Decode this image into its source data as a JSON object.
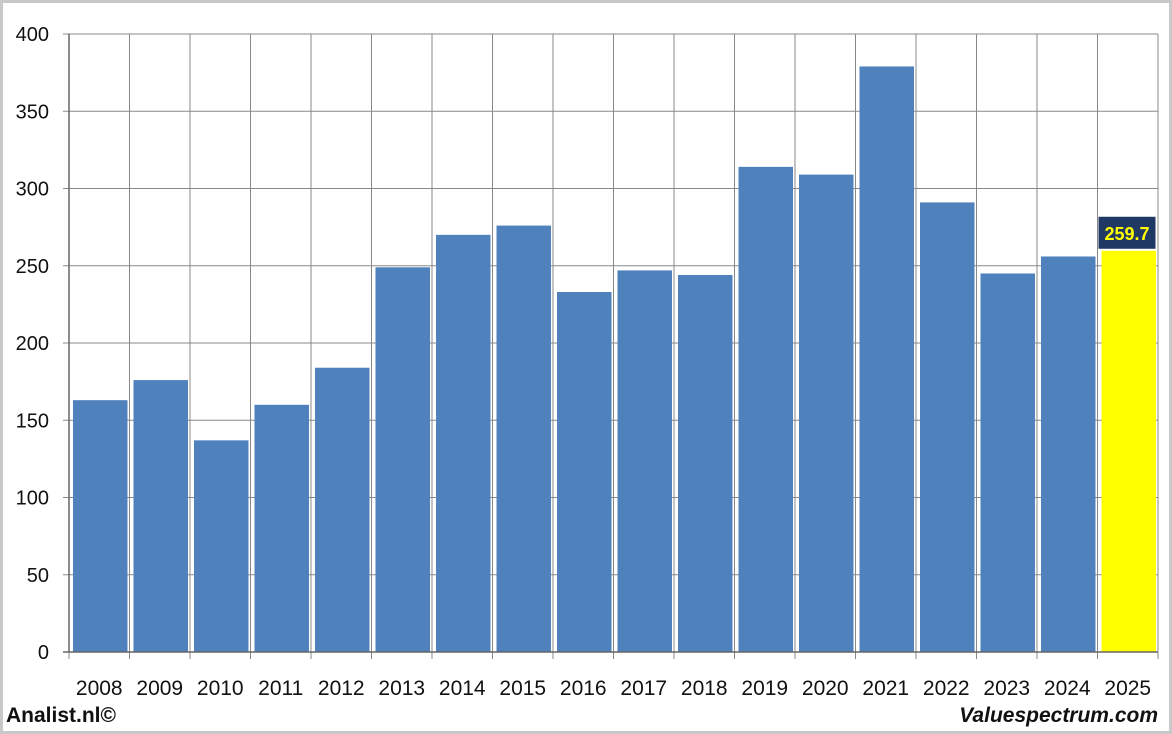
{
  "chart_data": {
    "type": "bar",
    "categories": [
      "2008",
      "2009",
      "2010",
      "2011",
      "2012",
      "2013",
      "2014",
      "2015",
      "2016",
      "2017",
      "2018",
      "2019",
      "2020",
      "2021",
      "2022",
      "2023",
      "2024",
      "2025"
    ],
    "values": [
      163,
      176,
      137,
      160,
      184,
      249,
      270,
      276,
      233,
      247,
      244,
      314,
      309,
      379,
      291,
      245,
      256,
      259.7
    ],
    "highlight": {
      "category": "2025",
      "label": "259.7",
      "color": "#ffff00",
      "label_bg": "#1f3864",
      "label_color": "#ffff00"
    },
    "bar_color": "#4f81bd",
    "grid_color": "#888888",
    "ylim": [
      0,
      400
    ],
    "yticks": [
      0,
      50,
      100,
      150,
      200,
      250,
      300,
      350,
      400
    ],
    "title": "",
    "xlabel": "",
    "ylabel": "",
    "grid": true
  },
  "footer": {
    "left": "Analist.nl©",
    "right": "Valuespectrum.com"
  }
}
